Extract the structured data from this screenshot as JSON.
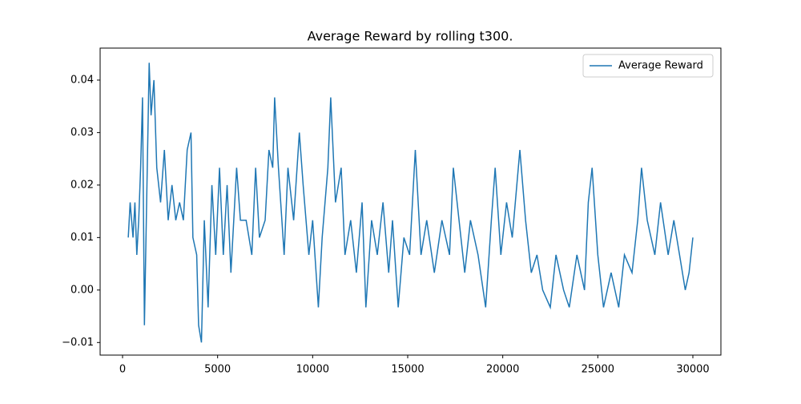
{
  "chart_data": {
    "type": "line",
    "title": "Average Reward by rolling t300.",
    "x": [
      300,
      400,
      550,
      650,
      750,
      850,
      950,
      1050,
      1150,
      1250,
      1400,
      1500,
      1650,
      1800,
      2000,
      2200,
      2400,
      2600,
      2800,
      3000,
      3200,
      3400,
      3600,
      3700,
      3900,
      4000,
      4150,
      4300,
      4500,
      4700,
      4900,
      5100,
      5300,
      5500,
      5700,
      6000,
      6200,
      6500,
      6800,
      7000,
      7200,
      7500,
      7700,
      7900,
      8000,
      8200,
      8500,
      8700,
      9000,
      9300,
      9500,
      9800,
      10000,
      10300,
      10500,
      10800,
      10950,
      11200,
      11500,
      11700,
      12000,
      12300,
      12600,
      12800,
      13100,
      13400,
      13700,
      14000,
      14200,
      14500,
      14800,
      15100,
      15400,
      15700,
      16000,
      16400,
      16800,
      17200,
      17400,
      17700,
      18000,
      18300,
      18700,
      19100,
      19400,
      19600,
      19900,
      20200,
      20500,
      20900,
      21200,
      21500,
      21800,
      22100,
      22500,
      22800,
      23200,
      23500,
      23900,
      24300,
      24500,
      24700,
      25000,
      25300,
      25700,
      26100,
      26400,
      26800,
      27100,
      27300,
      27600,
      28000,
      28300,
      28700,
      29000,
      29300,
      29600,
      29800,
      30000
    ],
    "series": [
      {
        "name": "Average Reward",
        "color": "#1f77b4",
        "values": [
          0.01,
          0.0167,
          0.01,
          0.0167,
          0.0067,
          0.0133,
          0.0233,
          0.0367,
          -0.0067,
          0.0133,
          0.0433,
          0.0333,
          0.04,
          0.0233,
          0.0167,
          0.0267,
          0.0133,
          0.02,
          0.0133,
          0.0167,
          0.0133,
          0.0267,
          0.03,
          0.01,
          0.0067,
          -0.0067,
          -0.01,
          0.0133,
          -0.0033,
          0.02,
          0.0067,
          0.0233,
          0.0067,
          0.02,
          0.0033,
          0.0233,
          0.0133,
          0.0133,
          0.0067,
          0.0233,
          0.01,
          0.0133,
          0.0267,
          0.0233,
          0.0367,
          0.0233,
          0.0067,
          0.0233,
          0.0133,
          0.03,
          0.02,
          0.0067,
          0.0133,
          -0.0033,
          0.01,
          0.0233,
          0.0367,
          0.0167,
          0.0233,
          0.0067,
          0.0133,
          0.0033,
          0.0167,
          -0.0033,
          0.0133,
          0.0067,
          0.0167,
          0.0033,
          0.0133,
          -0.0033,
          0.01,
          0.0067,
          0.0267,
          0.0067,
          0.0133,
          0.0033,
          0.0133,
          0.0067,
          0.0233,
          0.0133,
          0.0033,
          0.0133,
          0.0067,
          -0.0033,
          0.0133,
          0.0233,
          0.0067,
          0.0167,
          0.01,
          0.0267,
          0.0133,
          0.0033,
          0.0067,
          0.0,
          -0.0033,
          0.0067,
          0.0,
          -0.0033,
          0.0067,
          0.0,
          0.0167,
          0.0233,
          0.0067,
          -0.0033,
          0.0033,
          -0.0033,
          0.0067,
          0.0033,
          0.0133,
          0.0233,
          0.0133,
          0.0067,
          0.0167,
          0.0067,
          0.0133,
          0.0067,
          0.0,
          0.0033,
          0.01
        ]
      }
    ],
    "xlim": [
      -1180,
      31475
    ],
    "ylim": [
      -0.0124,
      0.0461
    ],
    "xticks": [
      0,
      5000,
      10000,
      15000,
      20000,
      25000,
      30000
    ],
    "yticks": [
      {
        "value": -0.01,
        "label": "−0.01"
      },
      {
        "value": 0,
        "label": "0.00"
      },
      0.01,
      0.02,
      0.03,
      0.04
    ],
    "legend": "upper right"
  }
}
